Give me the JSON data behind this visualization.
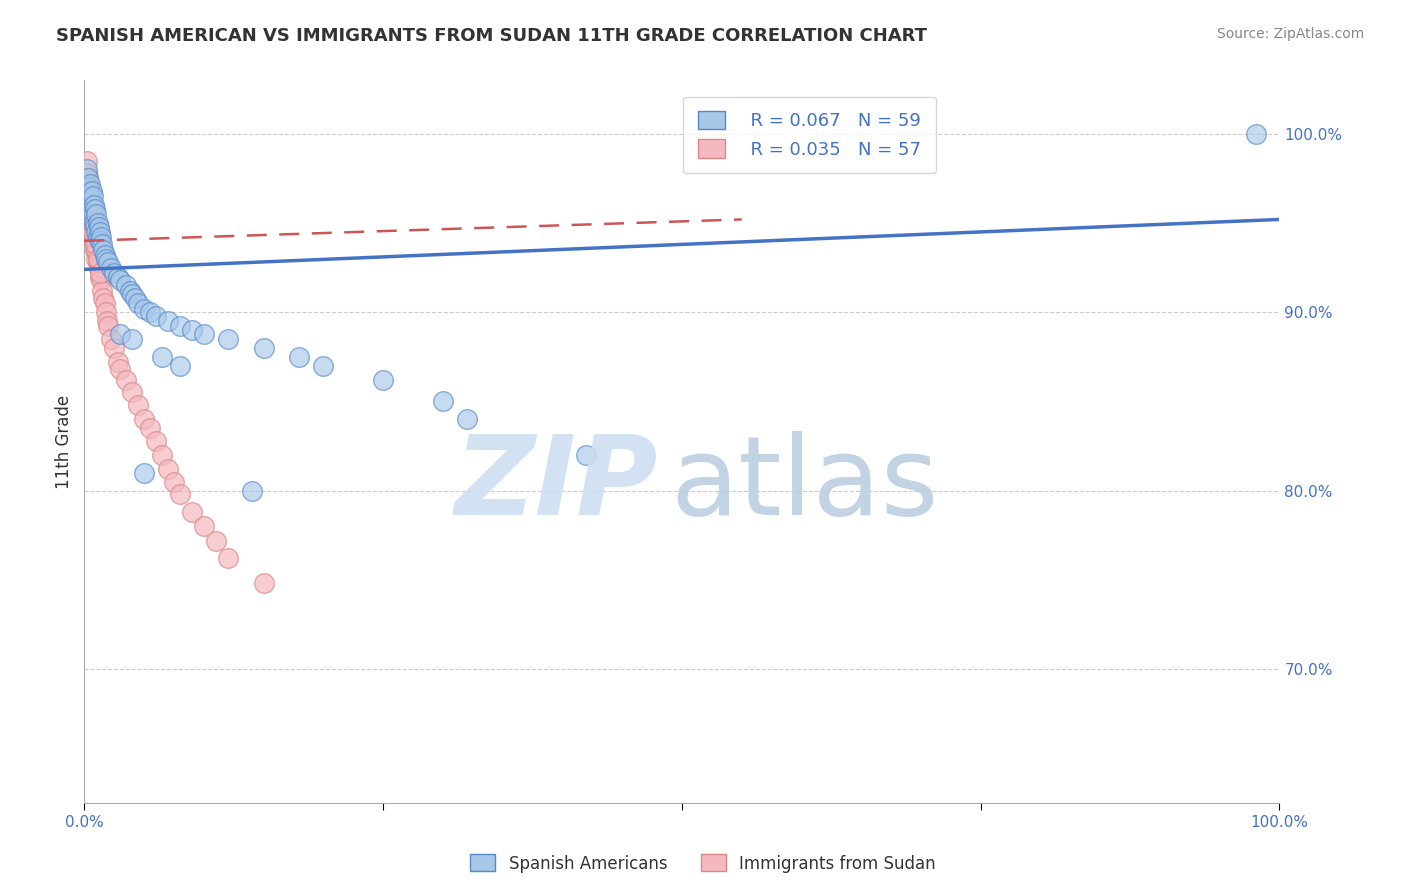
{
  "title": "SPANISH AMERICAN VS IMMIGRANTS FROM SUDAN 11TH GRADE CORRELATION CHART",
  "source": "Source: ZipAtlas.com",
  "ylabel": "11th Grade",
  "xlim": [
    0.0,
    1.0
  ],
  "ylim": [
    0.625,
    1.03
  ],
  "yticks": [
    0.7,
    0.8,
    0.9,
    1.0
  ],
  "ytick_labels": [
    "70.0%",
    "80.0%",
    "90.0%",
    "100.0%"
  ],
  "legend_r1": "R = 0.067",
  "legend_n1": "N = 59",
  "legend_r2": "R = 0.035",
  "legend_n2": "N = 57",
  "blue_color": "#a8c8e8",
  "blue_edge": "#5588cc",
  "pink_color": "#f4b8c0",
  "pink_edge": "#dd8888",
  "trendline_blue": "#4472c4",
  "trendline_pink": "#cc5555",
  "blue_scatter_x": [
    0.002,
    0.003,
    0.003,
    0.004,
    0.004,
    0.005,
    0.005,
    0.006,
    0.006,
    0.007,
    0.007,
    0.008,
    0.008,
    0.009,
    0.009,
    0.01,
    0.01,
    0.011,
    0.011,
    0.012,
    0.013,
    0.013,
    0.014,
    0.015,
    0.016,
    0.017,
    0.018,
    0.02,
    0.022,
    0.025,
    0.028,
    0.03,
    0.035,
    0.038,
    0.04,
    0.042,
    0.045,
    0.05,
    0.055,
    0.06,
    0.07,
    0.08,
    0.09,
    0.1,
    0.12,
    0.15,
    0.18,
    0.2,
    0.25,
    0.3,
    0.32,
    0.42,
    0.05,
    0.14,
    0.03,
    0.04,
    0.065,
    0.08,
    0.98
  ],
  "blue_scatter_y": [
    0.98,
    0.975,
    0.97,
    0.968,
    0.965,
    0.972,
    0.96,
    0.968,
    0.958,
    0.965,
    0.955,
    0.96,
    0.95,
    0.958,
    0.948,
    0.955,
    0.945,
    0.95,
    0.942,
    0.948,
    0.945,
    0.94,
    0.942,
    0.938,
    0.935,
    0.932,
    0.93,
    0.928,
    0.925,
    0.922,
    0.92,
    0.918,
    0.915,
    0.912,
    0.91,
    0.908,
    0.905,
    0.902,
    0.9,
    0.898,
    0.895,
    0.892,
    0.89,
    0.888,
    0.885,
    0.88,
    0.875,
    0.87,
    0.862,
    0.85,
    0.84,
    0.82,
    0.81,
    0.8,
    0.888,
    0.885,
    0.875,
    0.87,
    1.0
  ],
  "pink_scatter_x": [
    0.002,
    0.002,
    0.003,
    0.003,
    0.004,
    0.004,
    0.005,
    0.005,
    0.005,
    0.006,
    0.006,
    0.007,
    0.007,
    0.007,
    0.008,
    0.008,
    0.009,
    0.009,
    0.01,
    0.01,
    0.011,
    0.012,
    0.013,
    0.014,
    0.015,
    0.016,
    0.017,
    0.018,
    0.019,
    0.02,
    0.022,
    0.025,
    0.028,
    0.03,
    0.035,
    0.04,
    0.045,
    0.05,
    0.055,
    0.06,
    0.065,
    0.07,
    0.075,
    0.08,
    0.09,
    0.1,
    0.11,
    0.12,
    0.15,
    0.01,
    0.012,
    0.008,
    0.006,
    0.007,
    0.009,
    0.011,
    0.013
  ],
  "pink_scatter_y": [
    0.985,
    0.978,
    0.975,
    0.97,
    0.972,
    0.965,
    0.968,
    0.962,
    0.955,
    0.96,
    0.95,
    0.955,
    0.945,
    0.952,
    0.94,
    0.948,
    0.935,
    0.942,
    0.93,
    0.938,
    0.928,
    0.925,
    0.92,
    0.918,
    0.912,
    0.908,
    0.905,
    0.9,
    0.895,
    0.892,
    0.885,
    0.88,
    0.872,
    0.868,
    0.862,
    0.855,
    0.848,
    0.84,
    0.835,
    0.828,
    0.82,
    0.812,
    0.805,
    0.798,
    0.788,
    0.78,
    0.772,
    0.762,
    0.748,
    0.935,
    0.928,
    0.942,
    0.958,
    0.945,
    0.938,
    0.93,
    0.922
  ],
  "blue_trendline_x0": 0.0,
  "blue_trendline_y0": 0.924,
  "blue_trendline_x1": 1.0,
  "blue_trendline_y1": 0.952,
  "pink_trendline_x0": 0.0,
  "pink_trendline_y0": 0.94,
  "pink_trendline_x1": 0.55,
  "pink_trendline_y1": 0.952
}
